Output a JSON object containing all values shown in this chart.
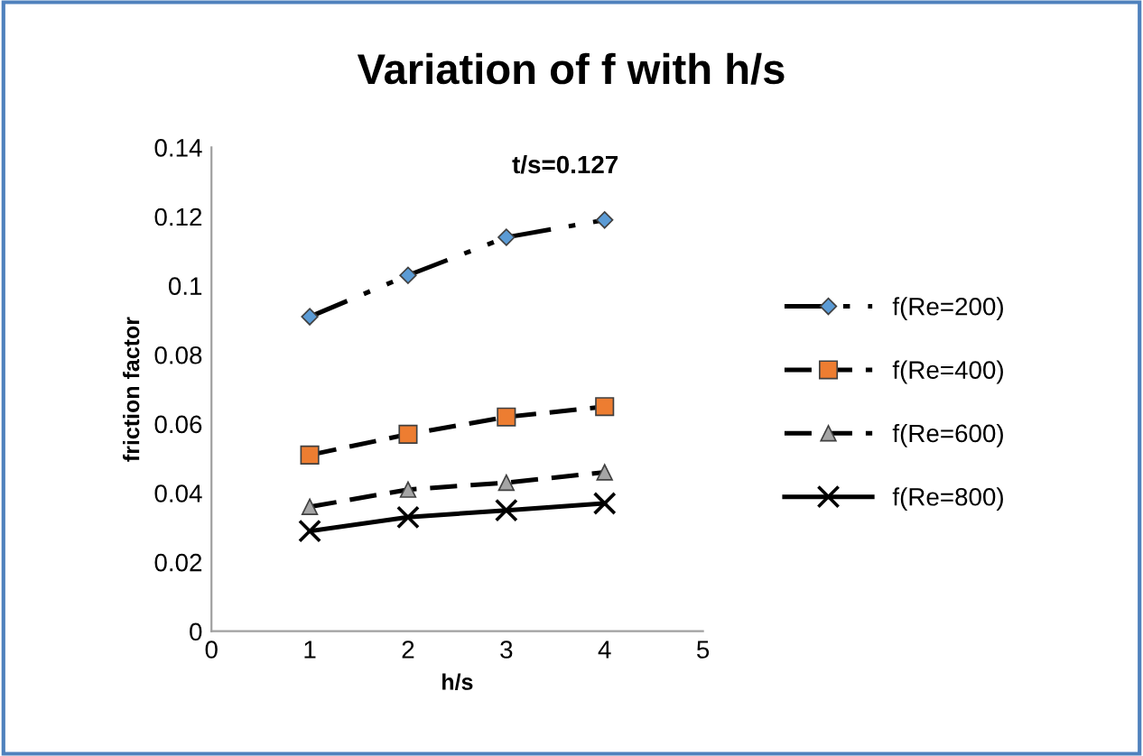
{
  "chart_data": {
    "type": "line",
    "title": "Variation of f with h/s",
    "xlabel": "h/s",
    "ylabel": "friction factor",
    "annotations": [
      "t/s=0.127"
    ],
    "x": [
      1,
      2,
      3,
      4
    ],
    "series": [
      {
        "name": "f(Re=200)",
        "color": "#5b9bd5",
        "marker": "diamond",
        "line_style": "dotted",
        "values": [
          0.091,
          0.103,
          0.114,
          0.119
        ]
      },
      {
        "name": "f(Re=400)",
        "color": "#ed7d31",
        "marker": "square",
        "line_style": "dashed",
        "values": [
          0.051,
          0.057,
          0.062,
          0.065
        ]
      },
      {
        "name": "f(Re=600)",
        "color": "#a5a5a5",
        "marker": "triangle",
        "line_style": "dashed",
        "values": [
          0.036,
          0.041,
          0.043,
          0.046
        ]
      },
      {
        "name": "f(Re=800)",
        "color": "#000000",
        "marker": "cross",
        "line_style": "solid",
        "values": [
          0.029,
          0.033,
          0.035,
          0.037
        ]
      }
    ],
    "xlim": [
      0,
      5
    ],
    "xticks": [
      0,
      1,
      2,
      3,
      4,
      5
    ],
    "ylim": [
      0,
      0.14
    ],
    "yticks": [
      0,
      0.02,
      0.04,
      0.06,
      0.08,
      0.1,
      0.12,
      0.14
    ],
    "grid": false,
    "legend": "right"
  }
}
